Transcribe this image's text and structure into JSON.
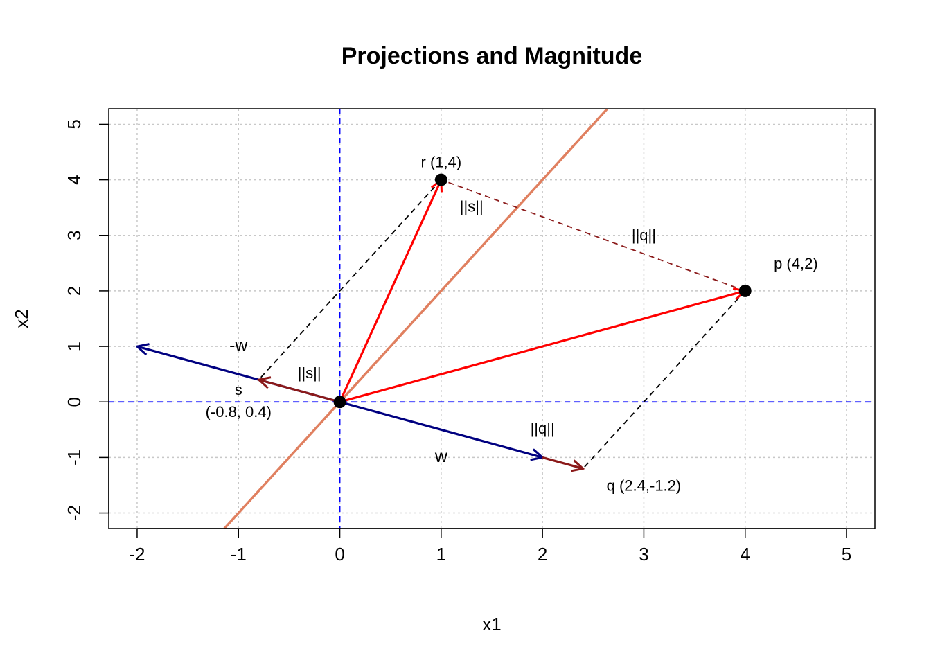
{
  "chart_data": {
    "type": "scatter",
    "title": "Projections and Magnitude",
    "xlabel": "x1",
    "ylabel": "x2",
    "xlim": [
      -2.28,
      5.28
    ],
    "ylim": [
      -2.28,
      5.28
    ],
    "x_ticks": [
      -2,
      -1,
      0,
      1,
      2,
      3,
      4,
      5
    ],
    "y_ticks": [
      -2,
      -1,
      0,
      1,
      2,
      3,
      4,
      5
    ],
    "x_tick_labels": [
      "-2",
      "-1",
      "0",
      "1",
      "2",
      "3",
      "4",
      "5"
    ],
    "y_tick_labels": [
      "-2",
      "-1",
      "0",
      "1",
      "2",
      "3",
      "4",
      "5"
    ],
    "grid": true,
    "colors": {
      "grid": "#c8c8c8",
      "points_arrows": "#ff0000",
      "w_vector": "#000080",
      "projection": "#8b1a1a",
      "boundary": "#e08060",
      "axes_dashed": "#0000ff",
      "dashed_black": "#000000"
    },
    "points": [
      {
        "x": 0,
        "y": 0
      },
      {
        "x": 1,
        "y": 4
      },
      {
        "x": 4,
        "y": 2
      }
    ],
    "boundary_line": {
      "slope": 2,
      "intercept": 0
    },
    "reference_lines": [
      {
        "orientation": "vertical",
        "value": 0
      },
      {
        "orientation": "horizontal",
        "value": 0
      }
    ],
    "arrows": [
      {
        "from": [
          0,
          0
        ],
        "to": [
          -2,
          1
        ],
        "color": "w_vector"
      },
      {
        "from": [
          0,
          0
        ],
        "to": [
          2,
          -1
        ],
        "color": "w_vector"
      },
      {
        "from": [
          0,
          0
        ],
        "to": [
          -0.8,
          0.4
        ],
        "color": "projection"
      },
      {
        "from": [
          2,
          -1
        ],
        "to": [
          2.4,
          -1.2
        ],
        "color": "projection"
      },
      {
        "from": [
          0,
          0
        ],
        "to": [
          1,
          4
        ],
        "color": "points_arrows"
      },
      {
        "from": [
          0,
          0
        ],
        "to": [
          4,
          2
        ],
        "color": "points_arrows"
      }
    ],
    "dashed_segments": [
      {
        "from": [
          1,
          4
        ],
        "to": [
          -0.8,
          0.4
        ],
        "color": "dashed_black"
      },
      {
        "from": [
          4,
          2
        ],
        "to": [
          2.4,
          -1.2
        ],
        "color": "dashed_black"
      },
      {
        "from": [
          4,
          2
        ],
        "to": [
          1,
          4
        ],
        "color": "projection"
      }
    ],
    "annotations": [
      {
        "text": "r (1,4)",
        "x": 1.0,
        "y": 4.3,
        "size": "small"
      },
      {
        "text": "p (4,2)",
        "x": 4.5,
        "y": 2.47,
        "size": "small"
      },
      {
        "text": "q (2.4,-1.2)",
        "x": 3.0,
        "y": -1.53,
        "size": "small"
      },
      {
        "text": "(-0.8, 0.4)",
        "x": -1.0,
        "y": -0.2,
        "size": "small"
      },
      {
        "text": "s",
        "x": -1.0,
        "y": 0.2,
        "size": "small"
      },
      {
        "text": "||s||",
        "x": -0.3,
        "y": 0.5,
        "size": "small"
      },
      {
        "text": "||s||",
        "x": 1.3,
        "y": 3.5,
        "size": "small"
      },
      {
        "text": "||q||",
        "x": 3.0,
        "y": 2.98,
        "size": "small"
      },
      {
        "text": "||q||",
        "x": 2.0,
        "y": -0.5,
        "size": "small"
      },
      {
        "text": "-w",
        "x": -1.0,
        "y": 1.0,
        "size": "large"
      },
      {
        "text": "w",
        "x": 1.0,
        "y": -1.0,
        "size": "large"
      }
    ]
  }
}
